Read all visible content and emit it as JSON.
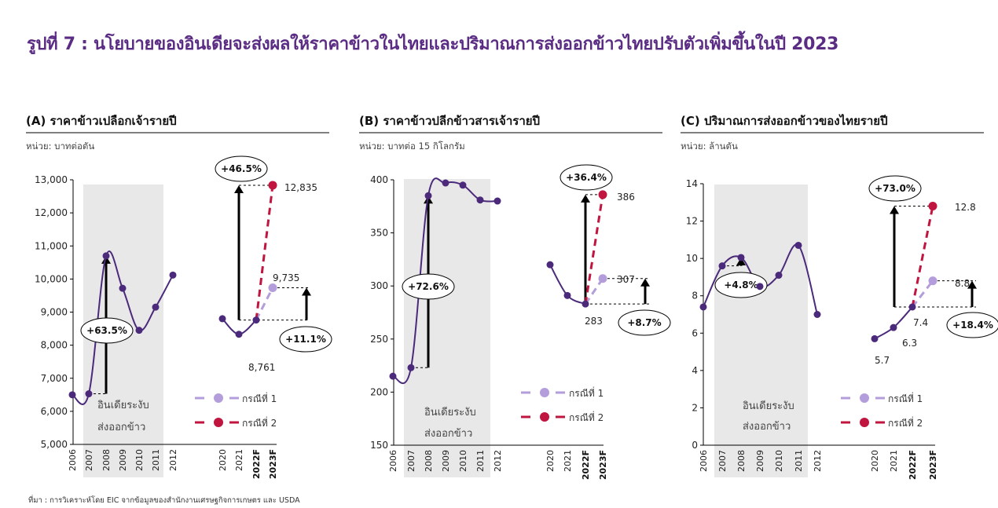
{
  "title": "รูปที่ 7 : นโยบายของอินเดียจะส่งผลให้ราคาข้าวในไทยและปริมาณการส่งออกข้าวไทยปรับตัวเพิ่มขึ้นในปี 2023",
  "source": "ที่มา : การวิเคราะห์โดย EIC จากข้อมูลของสำนักงานเศรษฐกิจการเกษตร และ USDA",
  "colors": {
    "title": "#5b2c83",
    "history_line": "#4b2a7b",
    "case1": "#b39ddb",
    "case2": "#c0153f",
    "shade": "#e8e8e8"
  },
  "legend": {
    "case1": "กรณีที่ 1",
    "case2": "กรณีที่ 2"
  },
  "shade_label": [
    "อินเดียระงับ",
    "ส่งออกข้าว"
  ],
  "chart_data": [
    {
      "type": "line",
      "title": "(A) ราคาข้าวเปลือกเจ้ารายปี",
      "unit": "หน่วย: บาทต่อตัน",
      "ylim": [
        5000,
        13000
      ],
      "ticks": [
        "5,000",
        "6,000",
        "7,000",
        "8,000",
        "9,000",
        "10,000",
        "11,000",
        "12,000",
        "13,000"
      ],
      "tick_values": [
        5000,
        6000,
        7000,
        8000,
        9000,
        10000,
        11000,
        12000,
        13000
      ],
      "x_left": [
        "2006",
        "2007",
        "2008",
        "2009",
        "2010",
        "2011",
        "2012"
      ],
      "y_left": [
        6500,
        6530,
        10700,
        9720,
        8450,
        9150,
        10120
      ],
      "x_right": [
        "2020",
        "2021",
        "2022F",
        "2023F"
      ],
      "y_right": [
        8800,
        8330,
        8761
      ],
      "case1_2023F": 9735,
      "case2_2023F": 12835,
      "labels": [
        "12,835",
        "9,735",
        "8,761"
      ],
      "annotations": {
        "left": "+63.5%",
        "case2": "+46.5%",
        "case1": "+11.1%"
      }
    },
    {
      "type": "line",
      "title": "(B) ราคาข้าวปลีกข้าวสารเจ้ารายปี",
      "unit": "หน่วย: บาทต่อ 15 กิโลกรัม",
      "ylim": [
        150,
        400
      ],
      "ticks": [
        "150",
        "200",
        "250",
        "300",
        "350",
        "400"
      ],
      "tick_values": [
        150,
        200,
        250,
        300,
        350,
        400
      ],
      "x_left": [
        "2006",
        "2007",
        "2008",
        "2009",
        "2010",
        "2011",
        "2012"
      ],
      "y_left": [
        215,
        223,
        385,
        397,
        395,
        381,
        380
      ],
      "x_right": [
        "2020",
        "2021",
        "2022F",
        "2023F"
      ],
      "y_right": [
        320,
        291,
        283
      ],
      "case1_2023F": 307,
      "case2_2023F": 386,
      "labels": [
        "386",
        "307",
        "283"
      ],
      "annotations": {
        "left": "+72.6%",
        "case2": "+36.4%",
        "case1": "+8.7%"
      }
    },
    {
      "type": "line",
      "title": "(C) ปริมาณการส่งออกข้าวของไทยรายปี",
      "unit": "หน่วย: ล้านตัน",
      "ylim": [
        0,
        14
      ],
      "ticks": [
        "0",
        "2",
        "4",
        "6",
        "8",
        "10",
        "12",
        "14"
      ],
      "tick_values": [
        0,
        2,
        4,
        6,
        8,
        10,
        12,
        14
      ],
      "x_left": [
        "2006",
        "2007",
        "2008",
        "2009",
        "2010",
        "2011",
        "2012"
      ],
      "y_left": [
        7.4,
        9.6,
        10.05,
        8.5,
        9.1,
        10.7,
        7.0
      ],
      "x_right": [
        "2020",
        "2021",
        "2022F",
        "2023F"
      ],
      "y_right": [
        5.7,
        6.3,
        7.4
      ],
      "case1_2023F": 8.8,
      "case2_2023F": 12.8,
      "labels": [
        "12.8",
        "8.8",
        "7.4",
        "6.3",
        "5.7"
      ],
      "annotations": {
        "left": "+4.8%",
        "case2": "+73.0%",
        "case1": "+18.4%"
      }
    }
  ]
}
